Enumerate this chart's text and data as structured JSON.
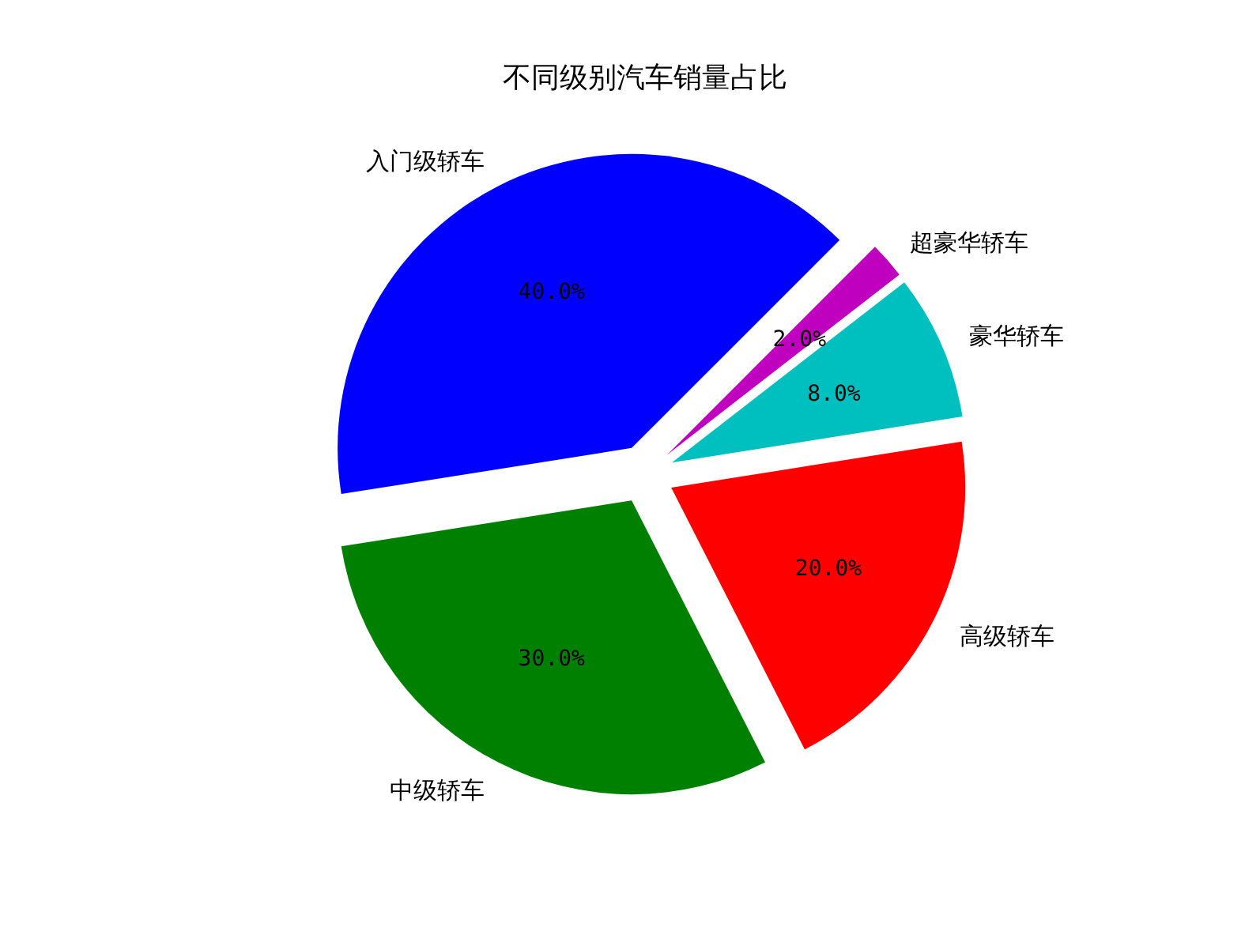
{
  "chart_data": {
    "type": "pie",
    "title": "不同级别汽车销量占比",
    "categories": [
      "入门级轿车",
      "中级轿车",
      "高级轿车",
      "豪华轿车",
      "超豪华轿车"
    ],
    "values": [
      40,
      30,
      20,
      8,
      2
    ],
    "colors": [
      "#0000ff",
      "#008000",
      "#ff0000",
      "#00bfbf",
      "#bf00bf"
    ],
    "value_labels": [
      "40.0%",
      "30.0%",
      "20.0%",
      "8.0%",
      "2.0%"
    ]
  }
}
